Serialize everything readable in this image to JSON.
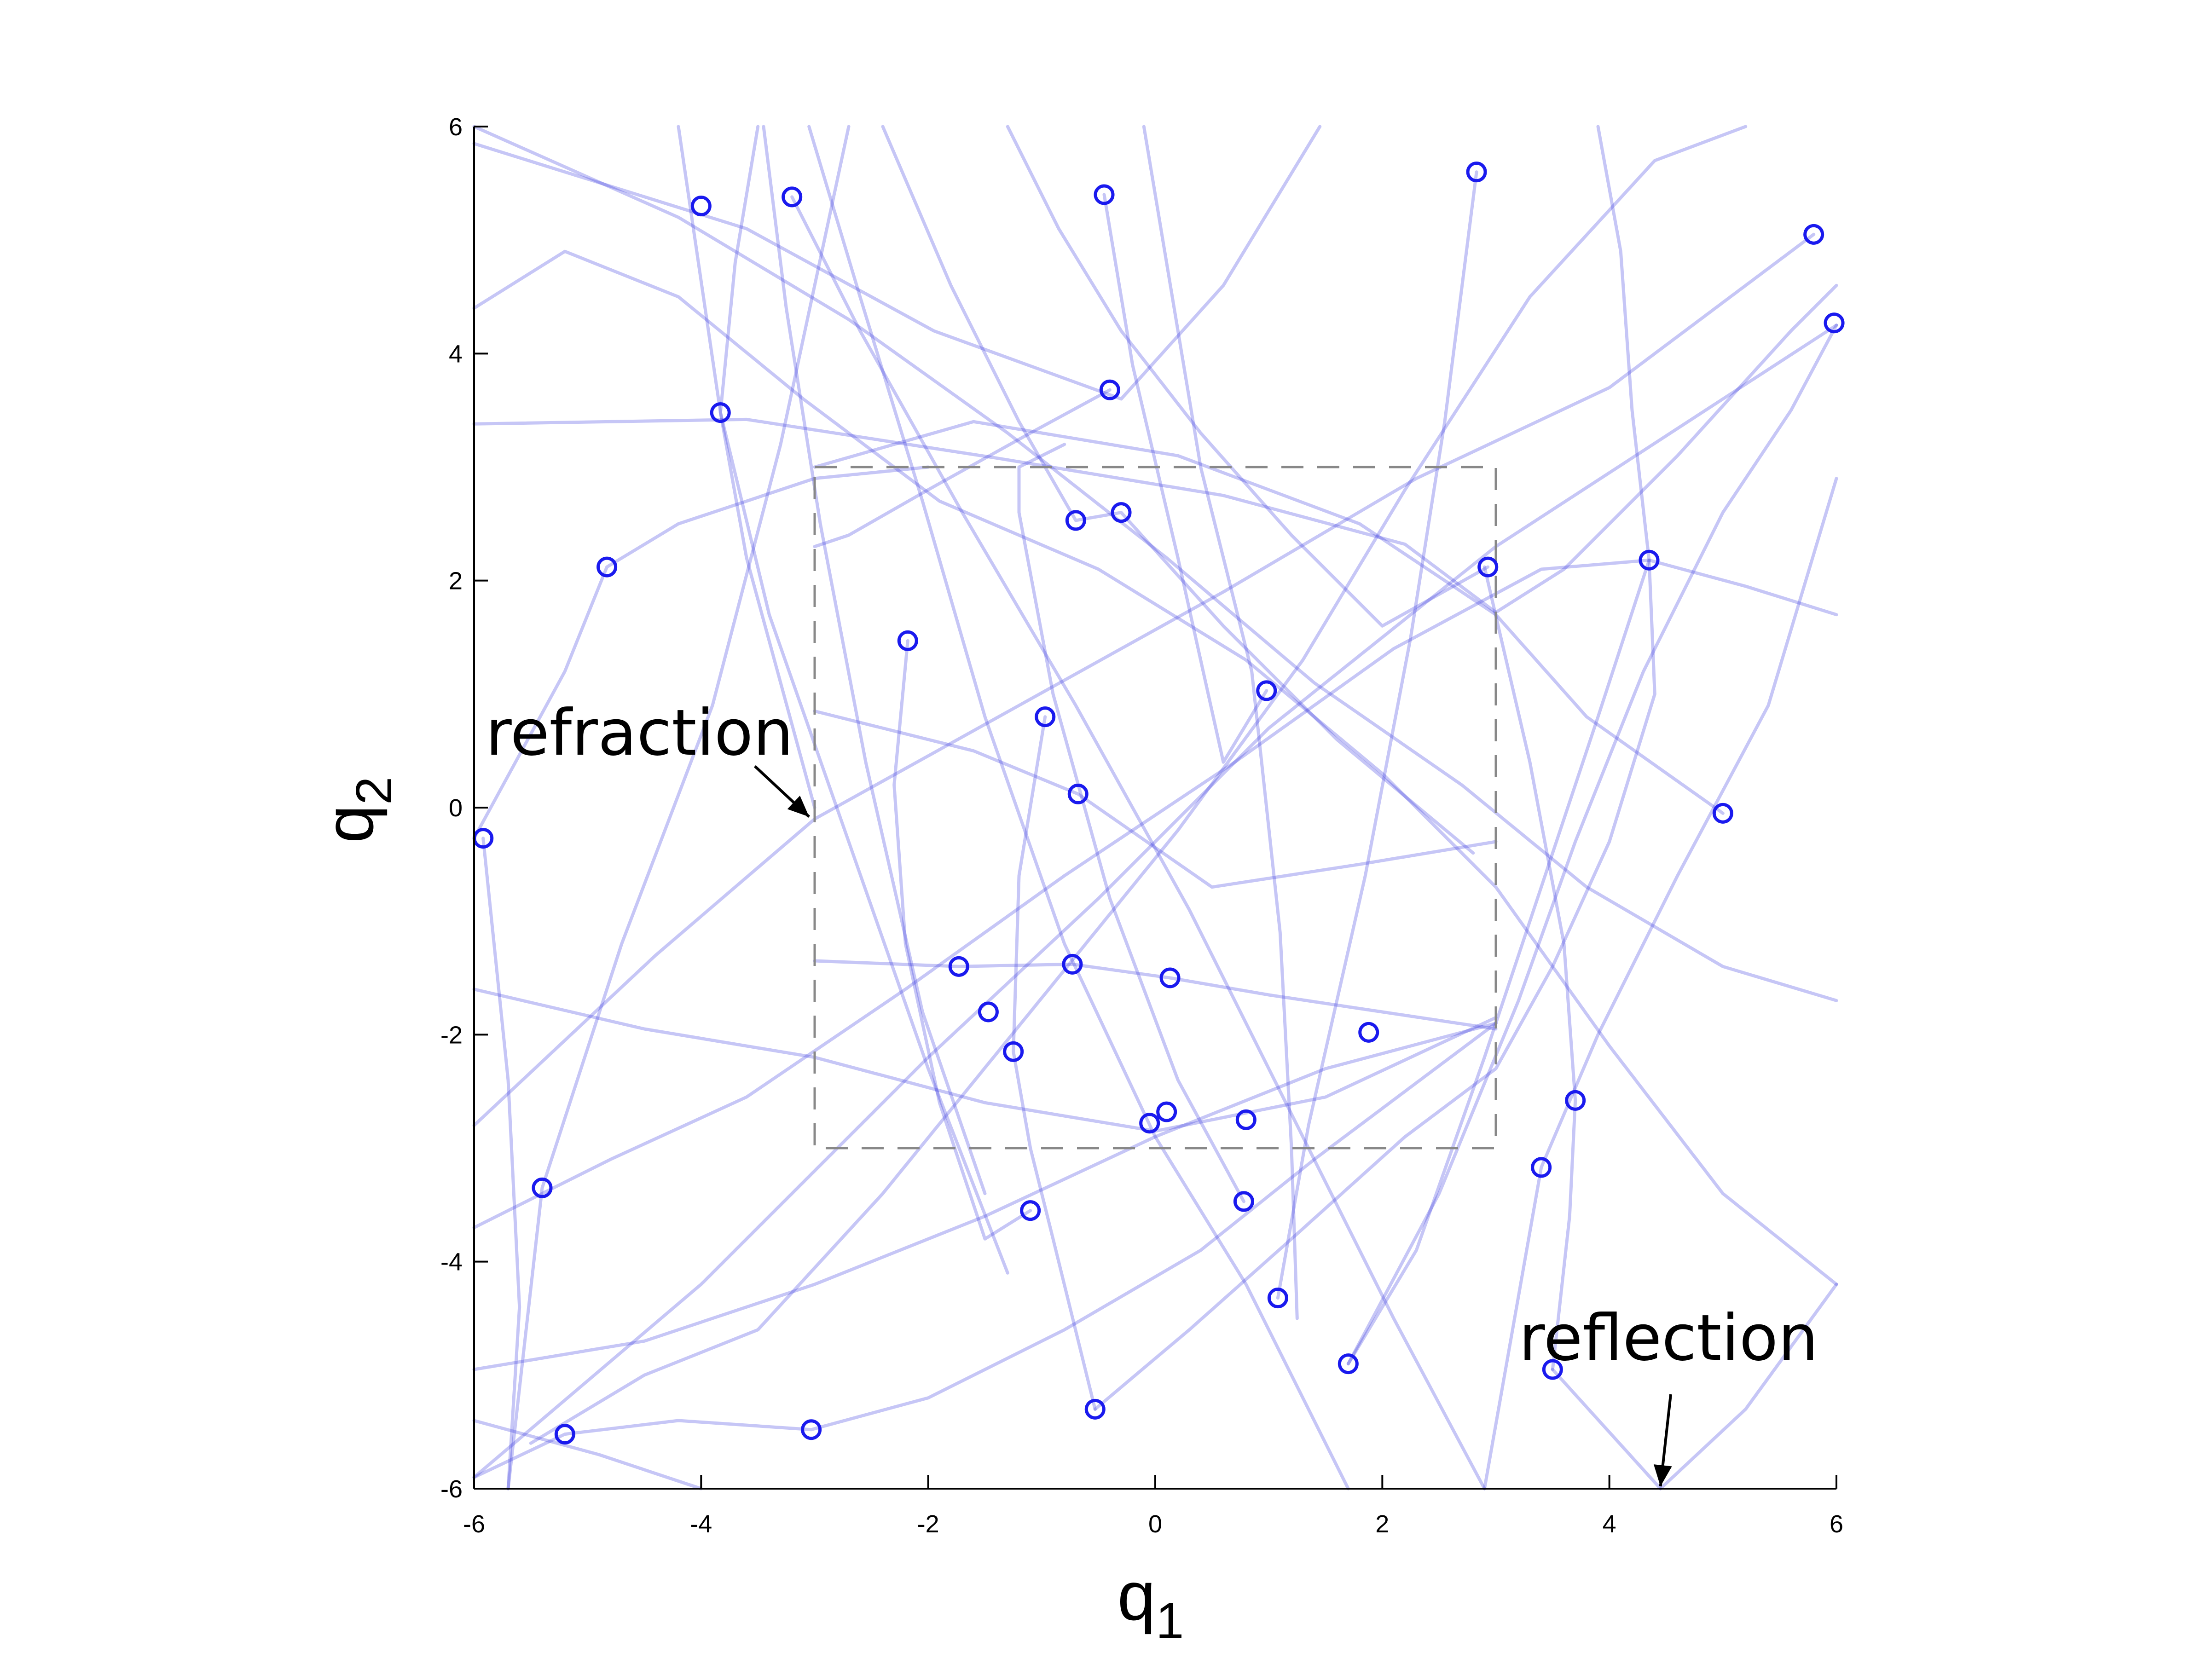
{
  "chart_data": {
    "type": "scatter",
    "xlabel": "q",
    "xlabel_sub": "1",
    "ylabel": "q",
    "ylabel_sub": "2",
    "xlim": [
      -6,
      6
    ],
    "ylim": [
      -6,
      6
    ],
    "xticks": [
      -6,
      -4,
      -2,
      0,
      2,
      4,
      6
    ],
    "yticks": [
      -6,
      -4,
      -2,
      0,
      2,
      4,
      6
    ],
    "grid": false,
    "colors": {
      "points": "#1a1aee",
      "trajectories": "#3333dd",
      "box": "#888888",
      "axes": "#000000"
    },
    "inner_region": {
      "x": [
        -3,
        3
      ],
      "y": [
        -3,
        3
      ],
      "style": "dashed"
    },
    "annotations": [
      {
        "text": "refraction",
        "arrow_to": [
          -3,
          0
        ]
      },
      {
        "text": "reflection",
        "arrow_to": [
          4.45,
          -6
        ]
      }
    ],
    "points": [
      [
        -4,
        5.3
      ],
      [
        -3.2,
        5.38
      ],
      [
        -0.45,
        5.4
      ],
      [
        2.83,
        5.6
      ],
      [
        5.8,
        5.05
      ],
      [
        5.98,
        4.27
      ],
      [
        -3.83,
        3.48
      ],
      [
        -0.4,
        3.68
      ],
      [
        -4.83,
        2.12
      ],
      [
        -0.7,
        2.53
      ],
      [
        -0.3,
        2.6
      ],
      [
        2.93,
        2.12
      ],
      [
        4.35,
        2.18
      ],
      [
        -2.18,
        1.47
      ],
      [
        -0.97,
        0.8
      ],
      [
        0.98,
        1.03
      ],
      [
        -0.68,
        0.12
      ],
      [
        -5.92,
        -0.27
      ],
      [
        5,
        -0.05
      ],
      [
        -1.73,
        -1.4
      ],
      [
        -0.73,
        -1.38
      ],
      [
        0.13,
        -1.5
      ],
      [
        -1.47,
        -1.8
      ],
      [
        -1.25,
        -2.15
      ],
      [
        1.88,
        -1.98
      ],
      [
        3.7,
        -2.58
      ],
      [
        0.1,
        -2.68
      ],
      [
        -0.05,
        -2.78
      ],
      [
        0.8,
        -2.75
      ],
      [
        -5.4,
        -3.35
      ],
      [
        3.4,
        -3.17
      ],
      [
        -1.1,
        -3.55
      ],
      [
        0.78,
        -3.47
      ],
      [
        1.08,
        -4.32
      ],
      [
        1.7,
        -4.9
      ],
      [
        3.5,
        -4.95
      ],
      [
        -5.2,
        -5.52
      ],
      [
        -3.03,
        -5.48
      ],
      [
        -0.53,
        -5.3
      ]
    ],
    "trajectories": [
      [
        [
          -6,
          5.85
        ],
        [
          -3.6,
          5.1
        ],
        [
          -1.95,
          4.2
        ],
        [
          -0.3,
          3.6
        ],
        [
          0.6,
          4.6
        ],
        [
          1.45,
          6
        ]
      ],
      [
        [
          -6,
          3.38
        ],
        [
          -3.6,
          3.42
        ],
        [
          -1.4,
          3.08
        ],
        [
          0.6,
          2.75
        ],
        [
          2.2,
          2.32
        ],
        [
          3,
          1.72
        ],
        [
          3.6,
          2.1
        ],
        [
          4.6,
          3.1
        ],
        [
          5.6,
          4.2
        ],
        [
          6,
          4.6
        ]
      ],
      [
        [
          -6,
          4.4
        ],
        [
          -5.2,
          4.9
        ],
        [
          -4.2,
          4.5
        ],
        [
          -3.1,
          3.6
        ],
        [
          -1.9,
          2.7
        ],
        [
          -0.5,
          2.1
        ],
        [
          0.8,
          1.3
        ],
        [
          2,
          0.3
        ],
        [
          3,
          -0.7
        ],
        [
          4,
          -2.1
        ],
        [
          5,
          -3.4
        ],
        [
          6,
          -4.2
        ]
      ],
      [
        [
          -6,
          -5.9
        ],
        [
          -4,
          -4.2
        ],
        [
          -2,
          -2.2
        ],
        [
          -0.5,
          -0.8
        ],
        [
          1,
          0.7
        ],
        [
          3,
          2.3
        ],
        [
          5,
          3.6
        ],
        [
          6,
          4.25
        ]
      ],
      [
        [
          -5.7,
          -6
        ],
        [
          -5.4,
          -3.35
        ],
        [
          -4.7,
          -1.2
        ],
        [
          -3.9,
          0.9
        ],
        [
          -3.3,
          3.2
        ],
        [
          -2.7,
          6
        ]
      ],
      [
        [
          -3,
          3
        ],
        [
          -1.6,
          3.4
        ],
        [
          0.2,
          3.1
        ],
        [
          1.8,
          2.5
        ],
        [
          3,
          1.7
        ],
        [
          3.8,
          0.8
        ],
        [
          5,
          -0.05
        ]
      ],
      [
        [
          -6,
          -2.8
        ],
        [
          -4.4,
          -1.3
        ],
        [
          -3,
          -0.1
        ],
        [
          -1.2,
          0.9
        ],
        [
          0.6,
          1.9
        ],
        [
          2.3,
          2.9
        ],
        [
          4,
          3.7
        ],
        [
          5.8,
          5.05
        ]
      ],
      [
        [
          -6,
          6
        ],
        [
          -4.2,
          5.2
        ],
        [
          -2.7,
          4.3
        ],
        [
          -1.3,
          3.3
        ],
        [
          0.1,
          2.2
        ],
        [
          1.4,
          1.1
        ],
        [
          2.7,
          0.2
        ],
        [
          3.8,
          -0.7
        ],
        [
          5,
          -1.4
        ],
        [
          6,
          -1.7
        ]
      ],
      [
        [
          -4.2,
          6
        ],
        [
          -3.83,
          3.48
        ],
        [
          -3.4,
          1.7
        ],
        [
          -2.7,
          -0.3
        ],
        [
          -2,
          -2.3
        ],
        [
          -1.3,
          -4.1
        ]
      ],
      [
        [
          -3.45,
          6
        ],
        [
          -3.25,
          4.4
        ],
        [
          -2.95,
          2.5
        ],
        [
          -2.55,
          0.4
        ],
        [
          -2.05,
          -1.8
        ],
        [
          -1.5,
          -3.4
        ]
      ],
      [
        [
          -3.05,
          6
        ],
        [
          -2.6,
          4.5
        ],
        [
          -2.05,
          2.7
        ],
        [
          -1.5,
          0.8
        ],
        [
          -0.8,
          -1.2
        ],
        [
          0,
          -2.9
        ],
        [
          0.8,
          -4.2
        ],
        [
          1.7,
          -6
        ]
      ],
      [
        [
          -3.5,
          6
        ],
        [
          -3.7,
          4.8
        ],
        [
          -3.83,
          3.48
        ],
        [
          -3.6,
          2.2
        ],
        [
          -3.3,
          1.1
        ],
        [
          -3,
          0
        ]
      ],
      [
        [
          -0.1,
          6
        ],
        [
          0.15,
          4.5
        ],
        [
          0.4,
          3
        ],
        [
          0.85,
          1.2
        ],
        [
          1.1,
          -1.1
        ],
        [
          1.2,
          -3
        ],
        [
          1.25,
          -4.5
        ]
      ],
      [
        [
          2.83,
          5.6
        ],
        [
          2.55,
          3.4
        ],
        [
          2.25,
          1.5
        ],
        [
          1.85,
          -0.6
        ],
        [
          1.35,
          -2.8
        ],
        [
          1.08,
          -4.32
        ]
      ],
      [
        [
          -6,
          -1.6
        ],
        [
          -4.5,
          -1.95
        ],
        [
          -3,
          -2.2
        ],
        [
          -1.5,
          -2.6
        ],
        [
          0,
          -2.85
        ],
        [
          1.5,
          -2.55
        ],
        [
          3,
          -1.85
        ]
      ],
      [
        [
          -6,
          -4.95
        ],
        [
          -4.5,
          -4.7
        ],
        [
          -3,
          -4.2
        ],
        [
          -1.5,
          -3.6
        ],
        [
          0,
          -2.9
        ],
        [
          1.5,
          -2.3
        ],
        [
          3,
          -1.9
        ]
      ],
      [
        [
          -6,
          -3.7
        ],
        [
          -4.8,
          -3.1
        ],
        [
          -3.6,
          -2.55
        ],
        [
          -2.2,
          -1.6
        ],
        [
          -0.8,
          -0.6
        ],
        [
          0.7,
          0.4
        ],
        [
          2.1,
          1.4
        ],
        [
          3.4,
          2.1
        ],
        [
          4.35,
          2.18
        ],
        [
          5.2,
          1.95
        ],
        [
          6,
          1.7
        ]
      ],
      [
        [
          -5.5,
          -5.6
        ],
        [
          -4.5,
          -5
        ],
        [
          -3.5,
          -4.6
        ],
        [
          -2.4,
          -3.4
        ],
        [
          -1.1,
          -1.8
        ],
        [
          0.2,
          -0.2
        ],
        [
          1.3,
          1.3
        ],
        [
          2.2,
          2.8
        ],
        [
          3.3,
          4.5
        ],
        [
          4.4,
          5.7
        ],
        [
          5.2,
          6
        ]
      ],
      [
        [
          -0.53,
          -5.3
        ],
        [
          0.3,
          -4.6
        ],
        [
          1.2,
          -3.8
        ],
        [
          2.2,
          -2.9
        ],
        [
          3,
          -2.3
        ],
        [
          3.5,
          -1.4
        ],
        [
          4,
          -0.3
        ],
        [
          4.4,
          1
        ],
        [
          4.35,
          2.18
        ],
        [
          4.2,
          3.5
        ],
        [
          4.1,
          4.9
        ],
        [
          3.9,
          6
        ]
      ],
      [
        [
          4.35,
          2.18
        ],
        [
          3.9,
          0.8
        ],
        [
          3.4,
          -0.7
        ],
        [
          2.9,
          -2.2
        ],
        [
          2.3,
          -3.9
        ],
        [
          1.7,
          -4.9
        ]
      ],
      [
        [
          3.5,
          -4.95
        ],
        [
          3.65,
          -3.6
        ],
        [
          3.7,
          -2.58
        ],
        [
          3.6,
          -1.2
        ],
        [
          3.3,
          0.4
        ],
        [
          2.9,
          2.12
        ]
      ],
      [
        [
          1.7,
          -4.9
        ],
        [
          2.5,
          -3.4
        ],
        [
          3.2,
          -1.7
        ],
        [
          3.7,
          -0.3
        ],
        [
          4.3,
          1.2
        ],
        [
          5,
          2.6
        ],
        [
          5.6,
          3.5
        ],
        [
          6,
          4.25
        ]
      ],
      [
        [
          -2.18,
          1.47
        ],
        [
          -2.3,
          0.2
        ],
        [
          -2.2,
          -1.2
        ],
        [
          -1.9,
          -2.6
        ],
        [
          -1.5,
          -3.8
        ],
        [
          -1.1,
          -3.55
        ]
      ],
      [
        [
          -0.97,
          0.8
        ],
        [
          -1.2,
          -0.6
        ],
        [
          -1.25,
          -2.15
        ],
        [
          -1.1,
          -3
        ],
        [
          -0.9,
          -3.8
        ],
        [
          -0.53,
          -5.3
        ]
      ],
      [
        [
          -6,
          -0.27
        ],
        [
          -5.2,
          1.2
        ],
        [
          -4.83,
          2.12
        ],
        [
          -4.2,
          2.5
        ],
        [
          -3,
          2.9
        ],
        [
          -2,
          3
        ]
      ],
      [
        [
          -3,
          -1.35
        ],
        [
          -1.73,
          -1.4
        ],
        [
          -0.73,
          -1.38
        ],
        [
          0.13,
          -1.5
        ],
        [
          1,
          -1.65
        ],
        [
          2,
          -1.8
        ],
        [
          3,
          -1.95
        ]
      ],
      [
        [
          3,
          -0.3
        ],
        [
          1.8,
          -0.5
        ],
        [
          0.5,
          -0.7
        ],
        [
          -0.68,
          0.12
        ],
        [
          -1.6,
          0.5
        ],
        [
          -3,
          0.85
        ]
      ],
      [
        [
          -6,
          -5.9
        ],
        [
          -5.2,
          -5.52
        ],
        [
          -4.2,
          -5.4
        ],
        [
          -3.03,
          -5.48
        ],
        [
          -2,
          -5.2
        ],
        [
          -0.8,
          -4.6
        ],
        [
          0.4,
          -3.9
        ],
        [
          1.4,
          -3.1
        ],
        [
          3,
          -1.9
        ]
      ],
      [
        [
          0.78,
          -3.47
        ],
        [
          0.2,
          -2.4
        ],
        [
          -0.4,
          -0.8
        ],
        [
          -0.9,
          1.0
        ],
        [
          -1.2,
          2.6
        ],
        [
          -1.2,
          3.0
        ],
        [
          -0.8,
          3.2
        ]
      ],
      [
        [
          4.45,
          -6
        ],
        [
          5.2,
          -5.3
        ],
        [
          6,
          -4.2
        ]
      ],
      [
        [
          3.5,
          -4.95
        ],
        [
          4.45,
          -6
        ]
      ],
      [
        [
          2.9,
          -6
        ],
        [
          3.4,
          -3.17
        ],
        [
          3.9,
          -2
        ],
        [
          4.6,
          -0.6
        ],
        [
          5.4,
          0.9
        ],
        [
          6,
          2.9
        ]
      ],
      [
        [
          -5.92,
          -0.27
        ],
        [
          -5.7,
          -2.4
        ],
        [
          -5.6,
          -4.4
        ],
        [
          -5.7,
          -6
        ]
      ],
      [
        [
          -0.45,
          5.4
        ],
        [
          -0.2,
          3.9
        ],
        [
          0.2,
          2.2
        ],
        [
          0.6,
          0.4
        ],
        [
          0.98,
          1.03
        ]
      ],
      [
        [
          -3.2,
          5.38
        ],
        [
          -2.6,
          4.2
        ],
        [
          -1.7,
          2.6
        ],
        [
          -0.7,
          0.9
        ],
        [
          0.3,
          -0.9
        ],
        [
          1.2,
          -2.7
        ],
        [
          2.1,
          -4.5
        ],
        [
          2.9,
          -6
        ]
      ],
      [
        [
          -2.4,
          6
        ],
        [
          -1.8,
          4.6
        ],
        [
          -1.2,
          3.4
        ],
        [
          -0.7,
          2.53
        ],
        [
          -0.3,
          2.6
        ],
        [
          0.6,
          1.6
        ],
        [
          1.6,
          0.6
        ],
        [
          2.8,
          -0.4
        ]
      ],
      [
        [
          -6,
          -5.4
        ],
        [
          -4.9,
          -5.7
        ],
        [
          -4,
          -6
        ]
      ],
      [
        [
          -0.4,
          3.68
        ],
        [
          -1.1,
          3.3
        ],
        [
          -2,
          2.8
        ],
        [
          -2.7,
          2.4
        ],
        [
          -3,
          2.3
        ]
      ],
      [
        [
          -1.3,
          6
        ],
        [
          -0.85,
          5.1
        ],
        [
          -0.3,
          4.2
        ],
        [
          0.4,
          3.3
        ],
        [
          1.2,
          2.4
        ],
        [
          2,
          1.6
        ],
        [
          2.93,
          2.12
        ]
      ]
    ]
  }
}
